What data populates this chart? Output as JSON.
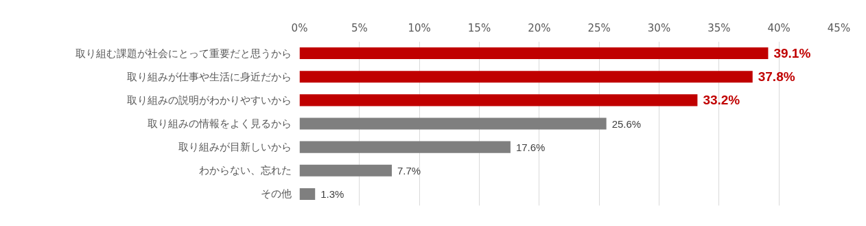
{
  "chart_data": {
    "type": "bar",
    "orientation": "horizontal",
    "categories": [
      "取り組む課題が社会にとって重要だと思うから",
      "取り組みが仕事や生活に身近だから",
      "取り組みの説明がわかりやすいから",
      "取り組みの情報をよく見るから",
      "取り組みが目新しいから",
      "わからない、忘れた",
      "その他"
    ],
    "values": [
      39.1,
      37.8,
      33.2,
      25.6,
      17.6,
      7.7,
      1.3
    ],
    "colors": [
      "#c00000",
      "#c00000",
      "#c00000",
      "#7f7f7f",
      "#7f7f7f",
      "#7f7f7f",
      "#7f7f7f"
    ],
    "value_labels": [
      "39.1%",
      "37.8%",
      "33.2%",
      "25.6%",
      "17.6%",
      "7.7%",
      "1.3%"
    ],
    "xlim": [
      0,
      45
    ],
    "xticks": [
      {
        "value": 0,
        "label": "0%"
      },
      {
        "value": 5,
        "label": "5%"
      },
      {
        "value": 10,
        "label": "10%"
      },
      {
        "value": 15,
        "label": "15%"
      },
      {
        "value": 20,
        "label": "20%"
      },
      {
        "value": 25,
        "label": "25%"
      },
      {
        "value": 30,
        "label": "30%"
      },
      {
        "value": 35,
        "label": "35%"
      },
      {
        "value": 40,
        "label": "40%"
      },
      {
        "value": 45,
        "label": "45%"
      }
    ],
    "grid": "x"
  }
}
